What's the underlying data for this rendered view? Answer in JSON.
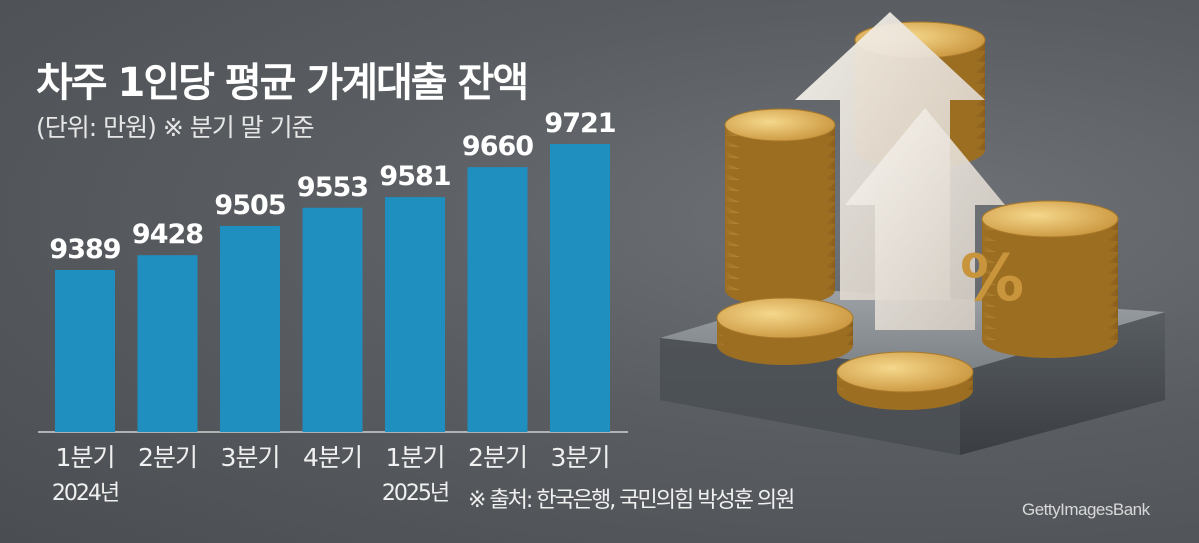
{
  "chart_data": {
    "type": "bar",
    "title": "차주 1인당 평균 가계대출 잔액",
    "subtitle": "(단위: 만원) ※ 분기 말 기준",
    "categories": [
      "1분기",
      "2분기",
      "3분기",
      "4분기",
      "1분기",
      "2분기",
      "3분기"
    ],
    "year_labels": [
      "2024년",
      "",
      "",
      "",
      "2025년",
      "",
      ""
    ],
    "values": [
      9389,
      9428,
      9505,
      9553,
      9581,
      9660,
      9721
    ],
    "bar_color": "#1f8fbf",
    "source": "※ 출처: 한국은행, 국민의힘 박성훈 의원",
    "grid": false,
    "legend": "none"
  },
  "credit": "GettyImagesBank",
  "illustration": {
    "description_icon": "coins-percent-arrow-icon",
    "percent_label": "%",
    "colors": {
      "coin": "#d8a94a",
      "coin_dark": "#a8782a",
      "platform": "#8e9398",
      "arrow": "#f2ece4"
    }
  }
}
